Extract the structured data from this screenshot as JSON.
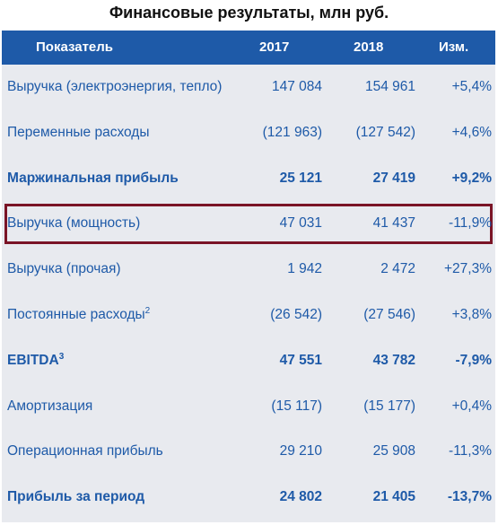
{
  "header": {
    "title": "Финансовые результаты, млн руб."
  },
  "table": {
    "columns": [
      "Показатель",
      "2017",
      "2018",
      "Изм."
    ],
    "rows": [
      {
        "cells": [
          "Выручка (электроэнергия, тепло)",
          "147 084",
          "154 961",
          "+5,4%"
        ]
      },
      {
        "cells": [
          "Переменные расходы",
          "(121 963)",
          "(127 542)",
          "+4,6%"
        ]
      },
      {
        "cells": [
          "Маржинальная прибыль",
          "25 121",
          "27 419",
          "+9,2%"
        ]
      },
      {
        "cells": [
          "Выручка (мощность)",
          "47 031",
          "41 437",
          "-11,9%"
        ]
      },
      {
        "cells": [
          "Выручка (прочая)",
          "1 942",
          "2 472",
          "+27,3%"
        ]
      },
      {
        "cells": [
          "Постоянные расходы",
          "(26 542)",
          "(27 546)",
          "+3,8%"
        ],
        "sup": "2"
      },
      {
        "cells": [
          "EBITDA",
          "47 551",
          "43 782",
          "-7,9%"
        ],
        "sup": "3"
      },
      {
        "cells": [
          "Амортизация",
          "(15 117)",
          "(15 177)",
          "+0,4%"
        ]
      },
      {
        "cells": [
          "Операционная прибыль",
          "29 210",
          "25 908",
          "-11,3%"
        ]
      },
      {
        "cells": [
          "Прибыль за период",
          "24 802",
          "21 405",
          "-13,7%"
        ]
      }
    ]
  }
}
